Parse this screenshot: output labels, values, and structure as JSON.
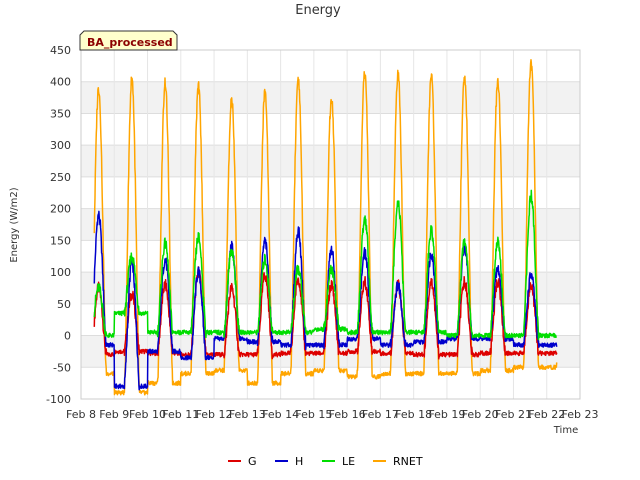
{
  "chart_data": {
    "type": "line",
    "title": "Energy",
    "xlabel": "Time",
    "ylabel": "Energy (W/m2)",
    "badge": "BA_processed",
    "x_tick_labels": [
      "Feb 8",
      "Feb 9",
      "Feb 10",
      "Feb 11",
      "Feb 12",
      "Feb 13",
      "Feb 14",
      "Feb 15",
      "Feb 16",
      "Feb 17",
      "Feb 18",
      "Feb 19",
      "Feb 20",
      "Feb 21",
      "Feb 22",
      "Feb 23"
    ],
    "xlim": [
      8,
      23
    ],
    "ylim": [
      -100,
      450
    ],
    "y_ticks": [
      -100,
      -50,
      0,
      50,
      100,
      150,
      200,
      250,
      300,
      350,
      400,
      450
    ],
    "grid": true,
    "legend_position": "bottom",
    "x_data_range": [
      8.4,
      22.3
    ],
    "series": [
      {
        "name": "G",
        "color": "#dd0000",
        "peak_day": [
          8.95,
          9.95,
          10.95,
          11.95,
          12.95,
          13.95,
          14.95,
          15.95,
          16.95,
          17.95,
          18.95,
          19.95,
          20.95,
          21.95
        ],
        "peak_value": [
          75,
          65,
          80,
          100,
          75,
          95,
          90,
          80,
          85,
          80,
          85,
          85,
          85,
          80
        ],
        "night_value": [
          -30,
          -25,
          -28,
          -30,
          -30,
          -30,
          -28,
          -28,
          -25,
          -28,
          -30,
          -30,
          -28,
          -28
        ]
      },
      {
        "name": "H",
        "color": "#0000cc",
        "peak_day": [
          8.95,
          9.95,
          10.95,
          11.95,
          12.95,
          13.95,
          14.95,
          15.95,
          16.95,
          17.95,
          18.95,
          19.95,
          20.95,
          21.95
        ],
        "peak_value": [
          190,
          115,
          120,
          100,
          140,
          148,
          165,
          135,
          130,
          80,
          130,
          140,
          105,
          95
        ],
        "night_value": [
          -15,
          -80,
          -25,
          -35,
          -5,
          -10,
          -15,
          -15,
          -5,
          -15,
          -10,
          -5,
          -5,
          -15
        ]
      },
      {
        "name": "LE",
        "color": "#00dd00",
        "peak_day": [
          8.95,
          9.95,
          10.95,
          11.95,
          12.95,
          13.95,
          14.95,
          15.95,
          16.95,
          17.95,
          18.95,
          19.95,
          20.95,
          21.95
        ],
        "peak_value": [
          75,
          125,
          145,
          155,
          135,
          120,
          105,
          105,
          185,
          210,
          165,
          150,
          150,
          220
        ],
        "night_value": [
          0,
          35,
          5,
          5,
          5,
          5,
          5,
          10,
          5,
          5,
          5,
          0,
          0,
          0
        ]
      },
      {
        "name": "RNET",
        "color": "#ffa500",
        "peak_day": [
          8.95,
          9.95,
          10.95,
          11.95,
          12.95,
          13.95,
          14.95,
          15.95,
          16.95,
          17.95,
          18.95,
          19.95,
          20.95,
          21.95
        ],
        "peak_value": [
          390,
          405,
          400,
          392,
          370,
          385,
          405,
          375,
          415,
          413,
          410,
          410,
          403,
          430
        ],
        "night_value": [
          -60,
          -90,
          -75,
          -60,
          -55,
          -75,
          -60,
          -55,
          -65,
          -60,
          -60,
          -60,
          -55,
          -50
        ]
      }
    ]
  }
}
